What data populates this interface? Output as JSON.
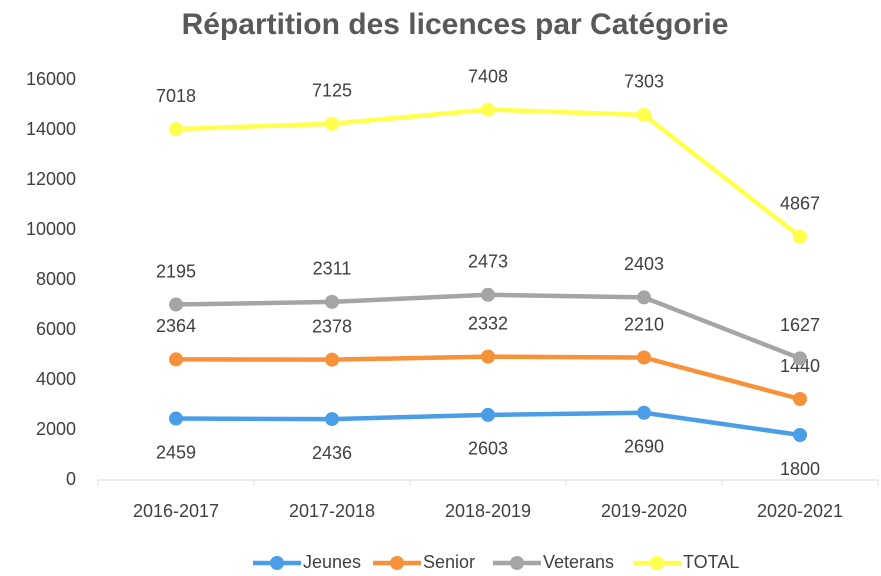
{
  "chart_data": {
    "type": "line",
    "stacked": true,
    "title": "Répartition des licences par Catégorie",
    "categories": [
      "2016-2017",
      "2017-2018",
      "2018-2019",
      "2019-2020",
      "2020-2021"
    ],
    "series": [
      {
        "name": "Jeunes",
        "color": "#4a9ee8",
        "values": [
          2459,
          2436,
          2603,
          2690,
          1800
        ]
      },
      {
        "name": "Senior",
        "color": "#f7913a",
        "values": [
          2364,
          2378,
          2332,
          2210,
          1440
        ]
      },
      {
        "name": "Veterans",
        "color": "#a5a5a5",
        "values": [
          2195,
          2311,
          2473,
          2403,
          1627
        ]
      },
      {
        "name": "TOTAL",
        "color": "#ffff4d",
        "values": [
          7018,
          7125,
          7408,
          7303,
          4867
        ]
      }
    ],
    "ylim": [
      0,
      16000
    ],
    "yticks": [
      0,
      2000,
      4000,
      6000,
      8000,
      10000,
      12000,
      14000,
      16000
    ],
    "grid": false,
    "legend": "bottom"
  }
}
